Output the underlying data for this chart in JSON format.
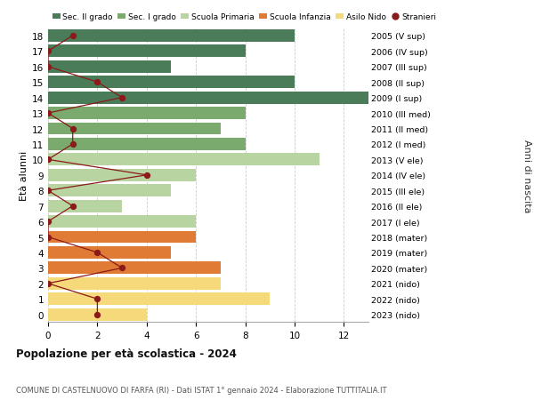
{
  "ages": [
    18,
    17,
    16,
    15,
    14,
    13,
    12,
    11,
    10,
    9,
    8,
    7,
    6,
    5,
    4,
    3,
    2,
    1,
    0
  ],
  "years": [
    "2005 (V sup)",
    "2006 (IV sup)",
    "2007 (III sup)",
    "2008 (II sup)",
    "2009 (I sup)",
    "2010 (III med)",
    "2011 (II med)",
    "2012 (I med)",
    "2013 (V ele)",
    "2014 (IV ele)",
    "2015 (III ele)",
    "2016 (II ele)",
    "2017 (I ele)",
    "2018 (mater)",
    "2019 (mater)",
    "2020 (mater)",
    "2021 (nido)",
    "2022 (nido)",
    "2023 (nido)"
  ],
  "bar_values": [
    10,
    8,
    5,
    10,
    13,
    8,
    7,
    8,
    11,
    6,
    5,
    3,
    6,
    6,
    5,
    7,
    7,
    9,
    4
  ],
  "stranieri": [
    1,
    0,
    0,
    2,
    3,
    0,
    1,
    1,
    0,
    4,
    0,
    1,
    0,
    0,
    2,
    3,
    0,
    2,
    2
  ],
  "bar_colors": [
    "#4a7c59",
    "#4a7c59",
    "#4a7c59",
    "#4a7c59",
    "#4a7c59",
    "#7aaa6e",
    "#7aaa6e",
    "#7aaa6e",
    "#b8d4a0",
    "#b8d4a0",
    "#b8d4a0",
    "#b8d4a0",
    "#b8d4a0",
    "#e07b35",
    "#e07b35",
    "#e07b35",
    "#f5d97a",
    "#f5d97a",
    "#f5d97a"
  ],
  "legend_labels": [
    "Sec. II grado",
    "Sec. I grado",
    "Scuola Primaria",
    "Scuola Infanzia",
    "Asilo Nido",
    "Stranieri"
  ],
  "legend_colors": [
    "#4a7c59",
    "#7aaa6e",
    "#b8d4a0",
    "#e07b35",
    "#f5d97a",
    "#8b1a1a"
  ],
  "title": "Popolazione per età scolastica - 2024",
  "subtitle": "COMUNE DI CASTELNUOVO DI FARFA (RI) - Dati ISTAT 1° gennaio 2024 - Elaborazione TUTTITALIA.IT",
  "ylabel_left": "Età alunni",
  "ylabel_right": "Anni di nascita",
  "xlim": [
    0,
    13
  ],
  "ylim": [
    -0.5,
    18.5
  ],
  "bg_color": "#ffffff",
  "grid_color": "#cccccc",
  "stranieri_color": "#8b1a1a"
}
